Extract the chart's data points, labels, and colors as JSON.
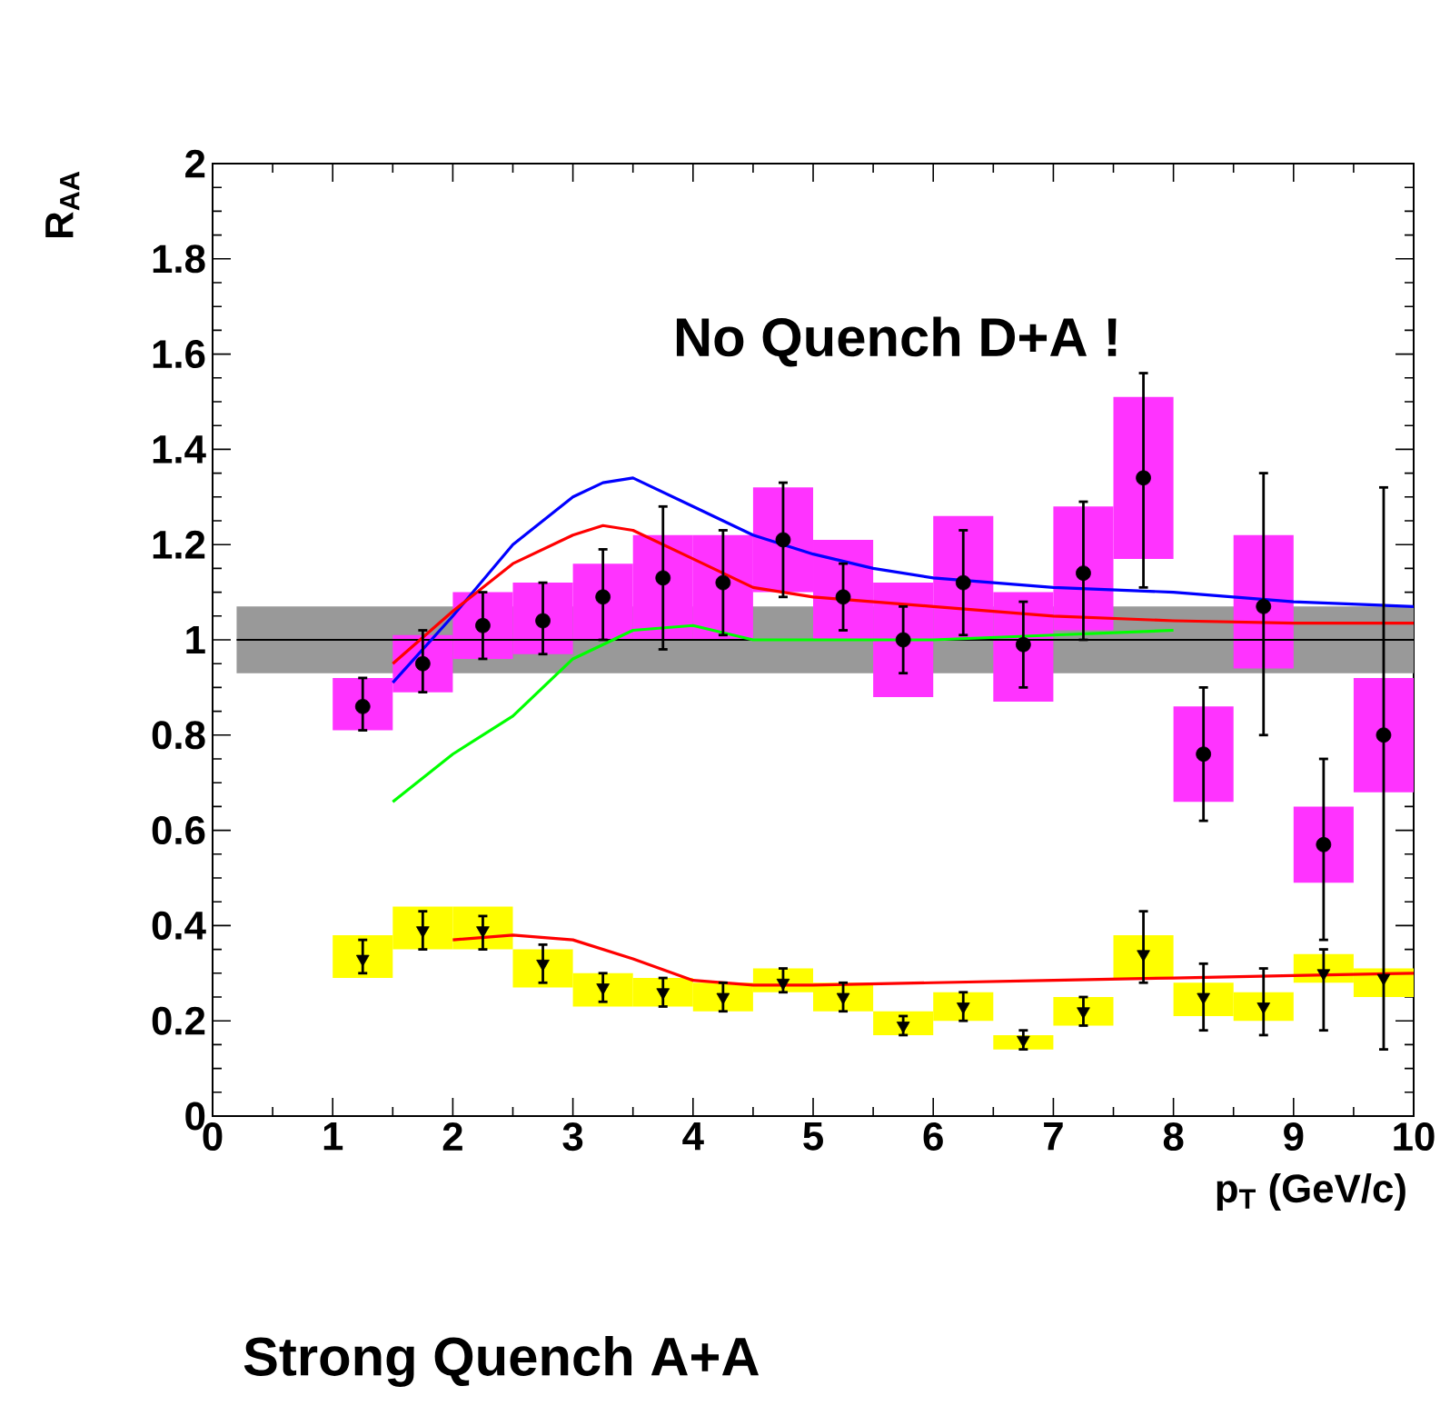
{
  "chart_data": {
    "type": "scatter",
    "xlabel": "p$_{T}$ (GeV/c)",
    "ylabel": "R$_{AA}$",
    "annotations": [
      "No Quench D+A !",
      "Strong Quench A+A"
    ],
    "xlim": [
      0,
      10
    ],
    "ylim": [
      0,
      2
    ],
    "xticks": [
      0,
      1,
      2,
      3,
      4,
      5,
      6,
      7,
      8,
      9,
      10
    ],
    "yticks": [
      0,
      0.2,
      0.4,
      0.6,
      0.8,
      1,
      1.2,
      1.4,
      1.6,
      1.8,
      2
    ],
    "bands": [
      {
        "axis": "y",
        "from": 0.93,
        "to": 1.07,
        "color": "#999999"
      }
    ],
    "ref_lines": [
      {
        "axis": "y",
        "value": 1,
        "color": "#000000"
      }
    ],
    "series": [
      {
        "type": "bar",
        "color": "#ff33ff",
        "x": [
          1.25,
          1.75,
          2.25,
          2.75,
          3.25,
          3.75,
          4.25,
          4.75,
          5.25,
          5.75,
          6.25,
          6.75,
          7.25,
          7.75,
          8.25,
          8.75,
          9.25,
          9.75
        ],
        "base": [
          0.81,
          0.89,
          0.96,
          0.97,
          1.0,
          1.0,
          1.0,
          1.1,
          1.0,
          0.88,
          1.0,
          0.87,
          1.02,
          1.17,
          0.66,
          0.94,
          0.49,
          0.68
        ],
        "values": [
          0.11,
          0.12,
          0.14,
          0.15,
          0.16,
          0.22,
          0.22,
          0.22,
          0.21,
          0.24,
          0.26,
          0.23,
          0.26,
          0.34,
          0.2,
          0.28,
          0.16,
          0.24
        ]
      },
      {
        "type": "bar",
        "color": "#ffff00",
        "x": [
          1.25,
          1.75,
          2.25,
          2.75,
          3.25,
          3.75,
          4.25,
          4.75,
          5.25,
          5.75,
          6.25,
          6.75,
          7.25,
          7.75,
          8.25,
          8.75,
          9.25,
          9.75
        ],
        "base": [
          0.29,
          0.35,
          0.35,
          0.27,
          0.23,
          0.23,
          0.22,
          0.26,
          0.22,
          0.17,
          0.2,
          0.14,
          0.19,
          0.29,
          0.21,
          0.2,
          0.28,
          0.25
        ],
        "values": [
          0.09,
          0.09,
          0.09,
          0.08,
          0.07,
          0.06,
          0.06,
          0.05,
          0.06,
          0.05,
          0.06,
          0.03,
          0.06,
          0.09,
          0.07,
          0.06,
          0.06,
          0.06
        ]
      },
      {
        "type": "line",
        "color": "#0000ff",
        "x": [
          1.5,
          2,
          2.5,
          3,
          3.25,
          3.5,
          4,
          4.5,
          5,
          5.5,
          6,
          7,
          8,
          9,
          10
        ],
        "values": [
          0.91,
          1.05,
          1.2,
          1.3,
          1.33,
          1.34,
          1.28,
          1.22,
          1.18,
          1.15,
          1.13,
          1.11,
          1.1,
          1.08,
          1.07
        ]
      },
      {
        "type": "line",
        "color": "#ff0000",
        "x": [
          1.5,
          2,
          2.5,
          3,
          3.25,
          3.5,
          4,
          4.5,
          5,
          6,
          7,
          8,
          9,
          10
        ],
        "values": [
          0.95,
          1.06,
          1.16,
          1.22,
          1.24,
          1.23,
          1.17,
          1.11,
          1.09,
          1.07,
          1.05,
          1.04,
          1.035,
          1.035
        ]
      },
      {
        "type": "line",
        "color": "#00ff00",
        "x": [
          1.5,
          2,
          2.5,
          3,
          3.5,
          4,
          4.5,
          5,
          6,
          7,
          8
        ],
        "values": [
          0.66,
          0.76,
          0.84,
          0.96,
          1.02,
          1.03,
          1.0,
          1.0,
          1.0,
          1.01,
          1.02
        ]
      },
      {
        "type": "line",
        "color": "#ff0000",
        "x": [
          2,
          2.5,
          3,
          3.5,
          4,
          4.5,
          5,
          6,
          7,
          8,
          9,
          10
        ],
        "values": [
          0.37,
          0.38,
          0.37,
          0.33,
          0.285,
          0.275,
          0.275,
          0.28,
          0.285,
          0.29,
          0.295,
          0.3
        ]
      },
      {
        "marker": "circle",
        "color": "#000000",
        "x": [
          1.25,
          1.75,
          2.25,
          2.75,
          3.25,
          3.75,
          4.25,
          4.75,
          5.25,
          5.75,
          6.25,
          6.75,
          7.25,
          7.75,
          8.25,
          8.75,
          9.25,
          9.75
        ],
        "values": [
          0.86,
          0.95,
          1.03,
          1.04,
          1.09,
          1.13,
          1.12,
          1.21,
          1.09,
          1.0,
          1.12,
          0.99,
          1.14,
          1.34,
          0.76,
          1.07,
          0.57,
          0.8
        ],
        "errors": [
          [
            0.81,
            0.92
          ],
          [
            0.89,
            1.02
          ],
          [
            0.96,
            1.1
          ],
          [
            0.97,
            1.12
          ],
          [
            1.0,
            1.19
          ],
          [
            0.98,
            1.28
          ],
          [
            1.01,
            1.23
          ],
          [
            1.09,
            1.33
          ],
          [
            1.02,
            1.16
          ],
          [
            0.93,
            1.07
          ],
          [
            1.01,
            1.23
          ],
          [
            0.9,
            1.08
          ],
          [
            1.0,
            1.29
          ],
          [
            1.11,
            1.56
          ],
          [
            0.62,
            0.9
          ],
          [
            0.8,
            1.35
          ],
          [
            0.37,
            0.75
          ],
          [
            0.14,
            1.32
          ]
        ]
      },
      {
        "marker": "triangle-down",
        "color": "#000000",
        "x": [
          1.25,
          1.75,
          2.25,
          2.75,
          3.25,
          3.75,
          4.25,
          4.75,
          5.25,
          5.75,
          6.25,
          6.75,
          7.25,
          7.75,
          8.25,
          8.75,
          9.25,
          9.75
        ],
        "values": [
          0.33,
          0.39,
          0.39,
          0.32,
          0.27,
          0.26,
          0.25,
          0.28,
          0.25,
          0.19,
          0.23,
          0.16,
          0.22,
          0.34,
          0.25,
          0.23,
          0.3,
          0.29
        ],
        "errors": [
          [
            0.3,
            0.37
          ],
          [
            0.35,
            0.43
          ],
          [
            0.35,
            0.42
          ],
          [
            0.28,
            0.36
          ],
          [
            0.24,
            0.3
          ],
          [
            0.23,
            0.29
          ],
          [
            0.22,
            0.28
          ],
          [
            0.26,
            0.31
          ],
          [
            0.22,
            0.28
          ],
          [
            0.17,
            0.21
          ],
          [
            0.2,
            0.26
          ],
          [
            0.14,
            0.18
          ],
          [
            0.19,
            0.25
          ],
          [
            0.28,
            0.43
          ],
          [
            0.18,
            0.32
          ],
          [
            0.17,
            0.31
          ],
          [
            0.18,
            0.35
          ],
          null
        ]
      }
    ]
  }
}
